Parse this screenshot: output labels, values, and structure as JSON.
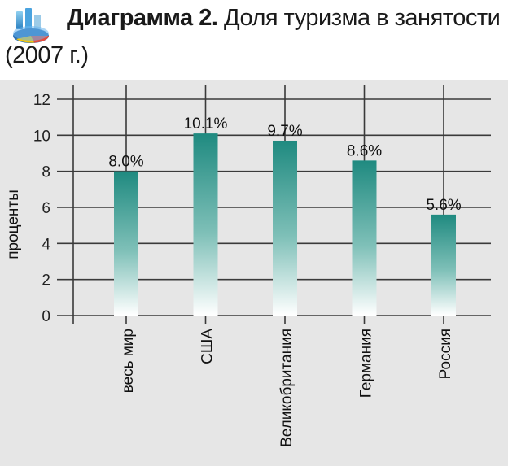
{
  "header": {
    "title_bold": "Диаграмма 2.",
    "title_rest": "Доля туризма в занятости",
    "title_line2": "(2007 г.)",
    "logo_icon": "pie-chart-logo-icon"
  },
  "colors": {
    "panel_background": "#e6e6e6",
    "bar_top": "#1f8a80",
    "bar_bottom": "#ffffff",
    "gridline": "#3a3a3a"
  },
  "chart_data": {
    "type": "bar",
    "title": "Диаграмма 2. Доля туризма в занятости (2007 г.)",
    "xlabel": "",
    "ylabel": "проценты",
    "categories": [
      "весь мир",
      "США",
      "Великобритания",
      "Германия",
      "Россия"
    ],
    "values": [
      8.0,
      10.1,
      9.7,
      8.6,
      5.6
    ],
    "value_labels": [
      "8.0%",
      "10.1%",
      "9.7%",
      "8.6%",
      "5.6%"
    ],
    "ylim": [
      0,
      12
    ],
    "yticks": [
      0,
      2,
      4,
      6,
      8,
      10,
      12
    ],
    "grid": true,
    "legend": "none"
  }
}
